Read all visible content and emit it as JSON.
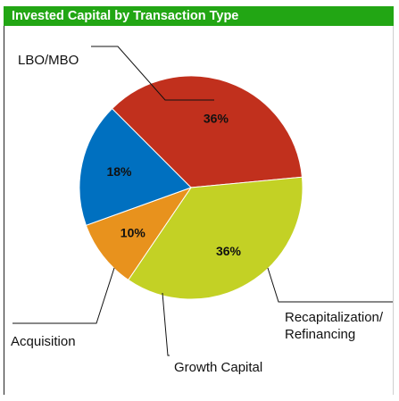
{
  "header": {
    "title": "Invested Capital by Transaction Type"
  },
  "chart_data": {
    "type": "pie",
    "title": "Invested Capital by Transaction Type",
    "slices": [
      {
        "label": "LBO/MBO",
        "lines": [
          "LBO/MBO"
        ],
        "value": 36,
        "pct_label": "36%",
        "color": "#c1301d"
      },
      {
        "label": "Recapitalization/ Refinancing",
        "lines": [
          "Recapitalization/",
          "Refinancing"
        ],
        "value": 36,
        "pct_label": "36%",
        "color": "#c3d125"
      },
      {
        "label": "Growth Capital",
        "lines": [
          "Growth Capital"
        ],
        "value": 10,
        "pct_label": "10%",
        "color": "#e8921d"
      },
      {
        "label": "Acquisition",
        "lines": [
          "Acquisition"
        ],
        "value": 18,
        "pct_label": "18%",
        "color": "#0070c0"
      }
    ]
  }
}
